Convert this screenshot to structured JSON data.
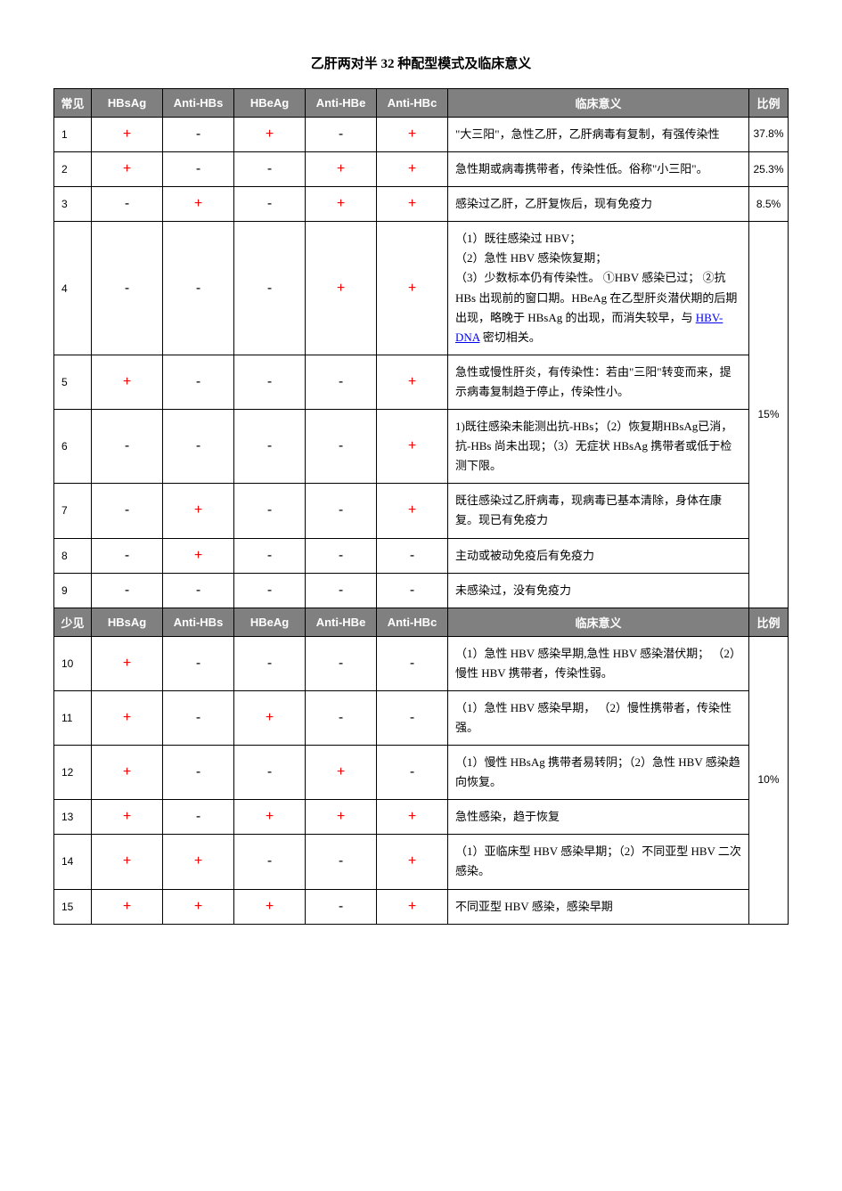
{
  "title": "乙肝两对半 32 种配型模式及临床意义",
  "columns": {
    "idx_common": "常见",
    "idx_rare": "少见",
    "hbsag": "HBsAg",
    "antihbs": "Anti-HBs",
    "hbeag": "HBeAg",
    "antihbe": "Anti-HBe",
    "antihbc": "Anti-HBc",
    "meaning": "临床意义",
    "ratio": "比例"
  },
  "marks": {
    "pos": "+",
    "neg": "-"
  },
  "link_text": "HBV-DNA",
  "ratios": {
    "r1": "37.8%",
    "r2": "25.3%",
    "r3": "8.5%",
    "r4to9": "15%",
    "r10to15": "10%"
  },
  "rows_common": [
    {
      "n": "1",
      "p": [
        "+",
        "-",
        "+",
        "-",
        "+"
      ],
      "m": "\"大三阳\"，急性乙肝，乙肝病毒有复制，有强传染性"
    },
    {
      "n": "2",
      "p": [
        "+",
        "-",
        "-",
        "+",
        "+"
      ],
      "m": "急性期或病毒携带者，传染性低。俗称\"小三阳\"。"
    },
    {
      "n": "3",
      "p": [
        "-",
        "+",
        "-",
        "+",
        "+"
      ],
      "m": "感染过乙肝，乙肝复恢后，现有免疫力"
    },
    {
      "n": "4",
      "p": [
        "-",
        "-",
        "-",
        "+",
        "+"
      ],
      "m_pre": "（1）既往感染过 HBV；\n（2）急性 HBV 感染恢复期；\n（3）少数标本仍有传染性。 ①HBV 感染已过； ②抗 HBs 出现前的窗口期。HBeAg 在乙型肝炎潜伏期的后期出现，略晚于 HBsAg 的出现，而消失较早，与 ",
      "m_post": " 密切相关。"
    },
    {
      "n": "5",
      "p": [
        "+",
        "-",
        "-",
        "-",
        "+"
      ],
      "m": "急性或慢性肝炎，有传染性：若由\"三阳\"转变而来，提示病毒复制趋于停止，传染性小。"
    },
    {
      "n": "6",
      "p": [
        "-",
        "-",
        "-",
        "-",
        "+"
      ],
      "m": "1)既往感染未能测出抗-HBs；（2）恢复期HBsAg已消， 抗-HBs 尚未出现；（3）无症状 HBsAg 携带者或低于检测下限。"
    },
    {
      "n": "7",
      "p": [
        "-",
        "+",
        "-",
        "-",
        "+"
      ],
      "m": "既往感染过乙肝病毒，现病毒已基本清除，身体在康复。现已有免疫力"
    },
    {
      "n": "8",
      "p": [
        "-",
        "+",
        "-",
        "-",
        "-"
      ],
      "m": "主动或被动免疫后有免疫力"
    },
    {
      "n": "9",
      "p": [
        "-",
        "-",
        "-",
        "-",
        "-"
      ],
      "m": "未感染过，没有免疫力"
    }
  ],
  "rows_rare": [
    {
      "n": "10",
      "p": [
        "+",
        "-",
        "-",
        "-",
        "-"
      ],
      "m": "（1）急性 HBV 感染早期,急性 HBV 感染潜伏期；  （2）慢性 HBV  携带者，传染性弱。"
    },
    {
      "n": "11",
      "p": [
        "+",
        "-",
        "+",
        "-",
        "-"
      ],
      "m": "（1）急性 HBV 感染早期， （2）慢性携带者，传染性强。"
    },
    {
      "n": "12",
      "p": [
        "+",
        "-",
        "-",
        "+",
        "-"
      ],
      "m": "（1）慢性 HBsAg  携带者易转阴；（2）急性 HBV 感染趋向恢复。"
    },
    {
      "n": "13",
      "p": [
        "+",
        "-",
        "+",
        "+",
        "+"
      ],
      "m": "急性感染，趋于恢复"
    },
    {
      "n": "14",
      "p": [
        "+",
        "+",
        "-",
        "-",
        "+"
      ],
      "m": "（1）亚临床型 HBV 感染早期；（2）不同亚型 HBV 二次感染。"
    },
    {
      "n": "15",
      "p": [
        "+",
        "+",
        "+",
        "-",
        "+"
      ],
      "m": "不同亚型 HBV 感染，感染早期"
    }
  ]
}
